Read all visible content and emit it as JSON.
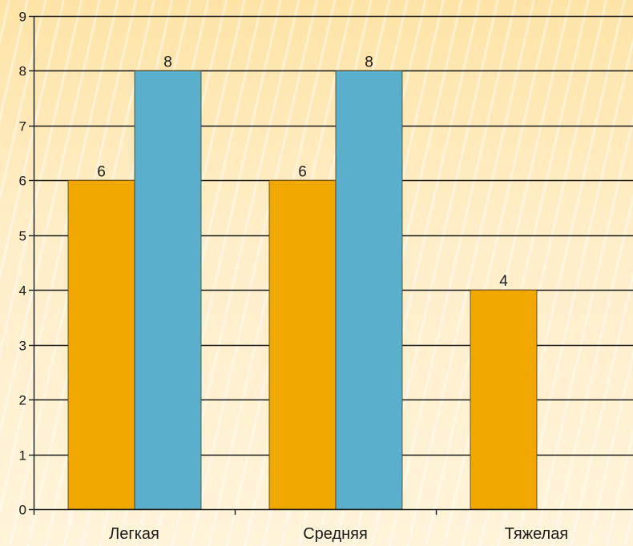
{
  "chart_data": {
    "type": "bar",
    "categories": [
      "Легкая",
      "Средняя",
      "Тяжелая"
    ],
    "series": [
      {
        "values": [
          6,
          6,
          4
        ],
        "color": "#f0a800"
      },
      {
        "values": [
          8,
          8,
          null
        ],
        "color": "#5ab0cc"
      }
    ],
    "ylim": [
      0,
      9
    ],
    "yticks": [
      0,
      1,
      2,
      3,
      4,
      5,
      6,
      7,
      8,
      9
    ],
    "grid": true,
    "data_labels": true,
    "title": "",
    "xlabel": "",
    "ylabel": ""
  }
}
